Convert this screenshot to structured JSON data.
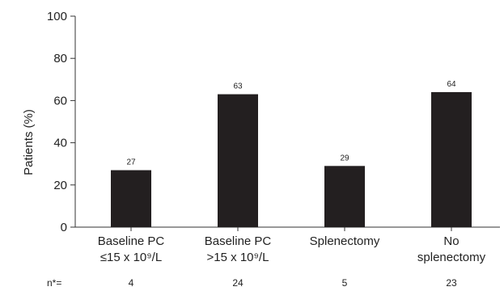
{
  "chart_data": {
    "type": "bar",
    "title": "",
    "xlabel": "",
    "ylabel": "Patients (%)",
    "ylim": [
      0,
      100
    ],
    "yticks": [
      0,
      20,
      40,
      60,
      80,
      100
    ],
    "grid": false,
    "legend": "none",
    "bar_color": "#231f20",
    "categories": [
      [
        "Baseline PC",
        "≤15 x 10⁹/L"
      ],
      [
        "Baseline PC",
        ">15 x 10⁹/L"
      ],
      [
        "Splenectomy"
      ],
      [
        "No",
        "splenectomy"
      ]
    ],
    "values": [
      27,
      63,
      29,
      64
    ],
    "n_prefix": "n*=",
    "n_values": [
      "4",
      "24",
      "5",
      "23"
    ]
  }
}
